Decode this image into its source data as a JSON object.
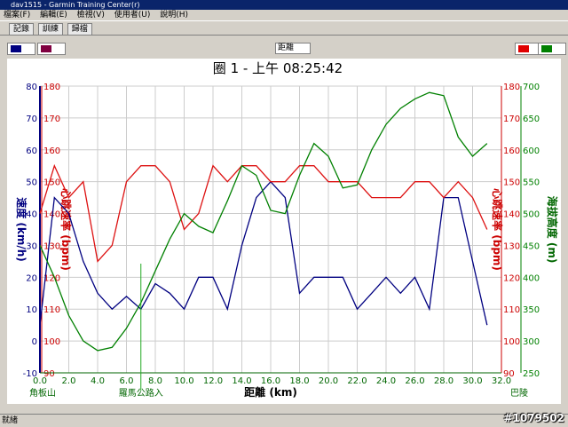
{
  "window": {
    "title": "dav1515 - Garmin Training Center(r)",
    "menu": [
      "檔案(F)",
      "編輯(E)",
      "檢視(V)",
      "使用者(U)",
      "說明(H)"
    ],
    "toolbar": [
      "記錄",
      "訓練",
      "歸檔"
    ],
    "x_select": "距離",
    "status": "就緒",
    "watermark": "#1079502"
  },
  "chart_data": {
    "type": "line",
    "title": "圈 1 - 上午 08:25:42",
    "x_label": "距離 (km)",
    "y_label": "速度 (km/h)",
    "y3_label": "心跳速率 (bpm)",
    "y2_label": "海拔高度 (m)",
    "x": [
      0,
      1,
      2,
      3,
      4,
      5,
      6,
      7,
      8,
      9,
      10,
      11,
      12,
      13,
      14,
      15,
      16,
      17,
      18,
      19,
      20,
      21,
      22,
      23,
      24,
      25,
      26,
      27,
      28,
      29,
      30,
      31
    ],
    "series": [
      {
        "name": "速度",
        "color": "#000080",
        "axis": "y",
        "values": [
          5,
          45,
          40,
          25,
          15,
          10,
          14,
          10,
          18,
          15,
          10,
          20,
          20,
          10,
          30,
          45,
          50,
          45,
          15,
          20,
          20,
          20,
          10,
          15,
          20,
          15,
          20,
          10,
          45,
          45,
          25,
          5
        ]
      },
      {
        "name": "心跳速率",
        "color": "#dd1111",
        "axis": "y3",
        "values": [
          140,
          155,
          145,
          150,
          125,
          130,
          150,
          155,
          155,
          150,
          135,
          140,
          155,
          150,
          155,
          155,
          150,
          150,
          155,
          155,
          150,
          150,
          150,
          145,
          145,
          145,
          150,
          150,
          145,
          150,
          145,
          135
        ]
      },
      {
        "name": "海拔高度",
        "color": "#008000",
        "axis": "y2",
        "values": [
          450,
          400,
          340,
          300,
          285,
          290,
          320,
          360,
          410,
          460,
          500,
          480,
          470,
          520,
          575,
          560,
          505,
          500,
          560,
          610,
          590,
          540,
          545,
          600,
          640,
          665,
          680,
          690,
          685,
          620,
          590,
          610
        ]
      }
    ],
    "xlim": [
      0,
      32
    ],
    "xticks": [
      {
        "value": 0,
        "label": "0.0"
      },
      {
        "value": 2,
        "label": "2.0"
      },
      {
        "value": 4,
        "label": "4.0"
      },
      {
        "value": 6,
        "label": "6.0"
      },
      {
        "value": 8,
        "label": "8.0"
      },
      {
        "value": 10,
        "label": "10.0"
      },
      {
        "value": 12,
        "label": "12.0"
      },
      {
        "value": 14,
        "label": "14.0"
      },
      {
        "value": 16,
        "label": "16.0"
      },
      {
        "value": 18,
        "label": "18.0"
      },
      {
        "value": 20,
        "label": "20.0"
      },
      {
        "value": 22,
        "label": "22.0"
      },
      {
        "value": 24,
        "label": "24.0"
      },
      {
        "value": 26,
        "label": "26.0"
      },
      {
        "value": 28,
        "label": "28.0"
      },
      {
        "value": 30,
        "label": "30.0"
      },
      {
        "value": 32,
        "label": "32.0"
      }
    ],
    "ylim": [
      -10,
      80
    ],
    "yticks": [
      -10,
      0,
      10,
      20,
      30,
      40,
      50,
      60,
      70,
      80
    ],
    "y3lim": [
      90,
      180
    ],
    "y3ticks": [
      90,
      100,
      110,
      120,
      130,
      140,
      150,
      160,
      170,
      180
    ],
    "y2lim": [
      250,
      700
    ],
    "y2ticks": [
      250,
      300,
      350,
      400,
      450,
      500,
      550,
      600,
      650,
      700
    ],
    "grid": true,
    "annotations": [
      {
        "x": 0,
        "text": "角板山"
      },
      {
        "x": 7,
        "text": "羅馬公路入"
      },
      {
        "x": 32,
        "text": "巴陵"
      }
    ]
  }
}
